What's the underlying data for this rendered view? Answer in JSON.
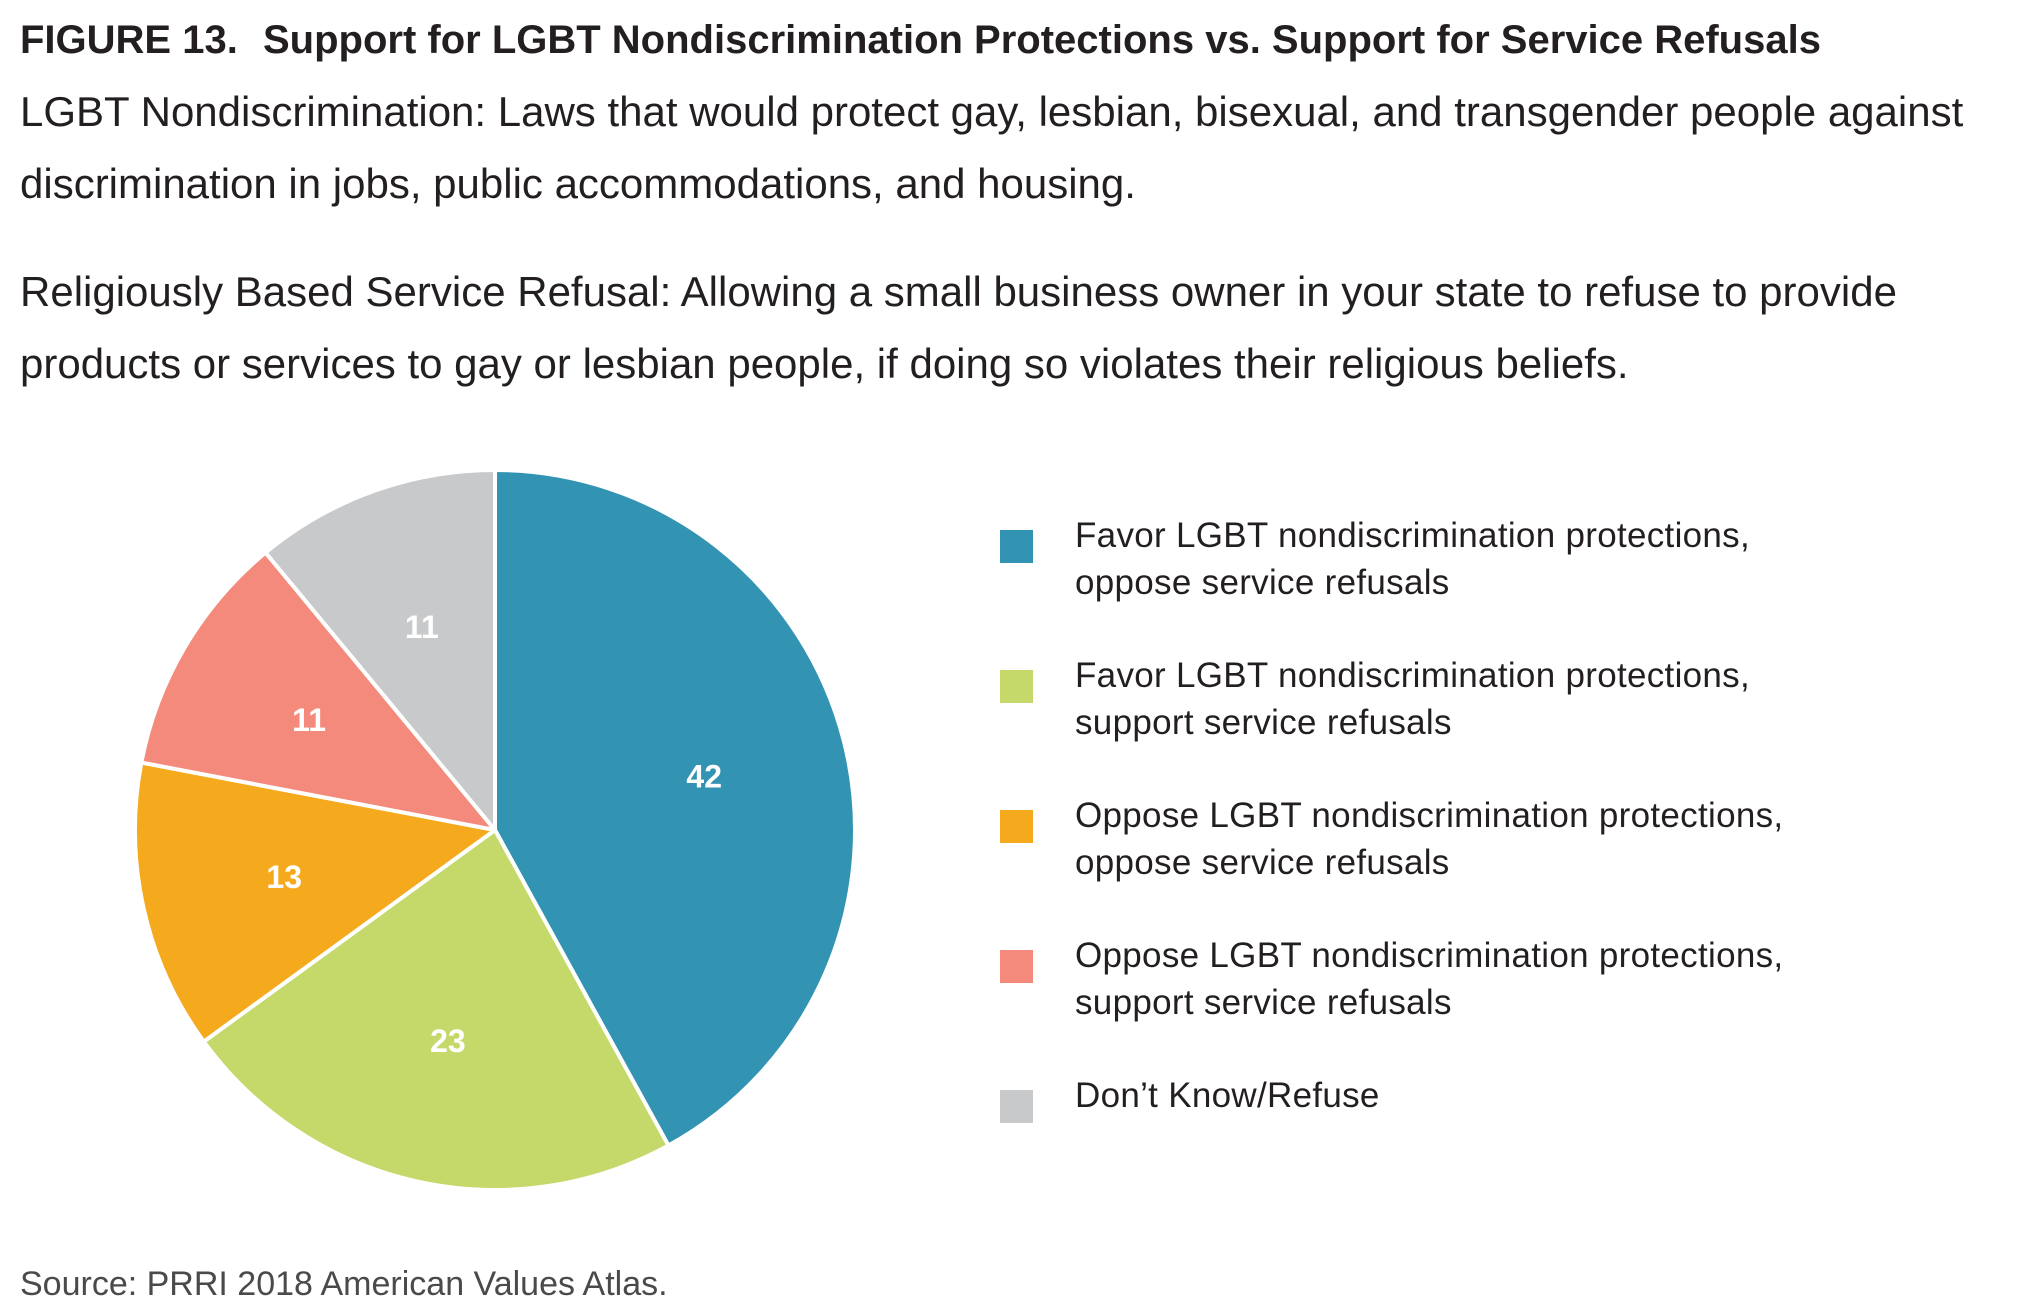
{
  "figure": {
    "number": "FIGURE 13.",
    "title": "Support for LGBT Nondiscrimination Protections vs. Support for Service Refusals"
  },
  "definitions": [
    {
      "text": "LGBT Nondiscrimination: Laws that would protect gay, lesbian, bisexual, and transgender people against discrimination in jobs, public accommodations, and housing."
    },
    {
      "text": "Religiously Based Service Refusal: Allowing a small business owner in your state to refuse to provide products or services to gay or lesbian people, if doing so violates their religious beliefs."
    }
  ],
  "chart_data": {
    "type": "pie",
    "start_angle": "12 o'clock",
    "direction": "clockwise",
    "legend_position": "right",
    "slices": [
      {
        "label_line1": "Favor LGBT nondiscrimination protections,",
        "label_line2": "oppose service refusals",
        "value": 42,
        "value_label": "42",
        "color": "#3393b3"
      },
      {
        "label_line1": "Favor LGBT nondiscrimination protections,",
        "label_line2": "support service refusals",
        "value": 23,
        "value_label": "23",
        "color": "#c5d96b"
      },
      {
        "label_line1": "Oppose LGBT nondiscrimination protections,",
        "label_line2": "oppose service refusals",
        "value": 13,
        "value_label": "13",
        "color": "#f5a91d"
      },
      {
        "label_line1": "Oppose LGBT nondiscrimination protections,",
        "label_line2": "support service refusals",
        "value": 11,
        "value_label": "11",
        "color": "#f48a7b"
      },
      {
        "label_line1": "Don’t Know/Refuse",
        "label_line2": "",
        "value": 11,
        "value_label": "11",
        "color": "#c8c9cb"
      }
    ]
  },
  "source": "Source: PRRI 2018 American Values Atlas."
}
